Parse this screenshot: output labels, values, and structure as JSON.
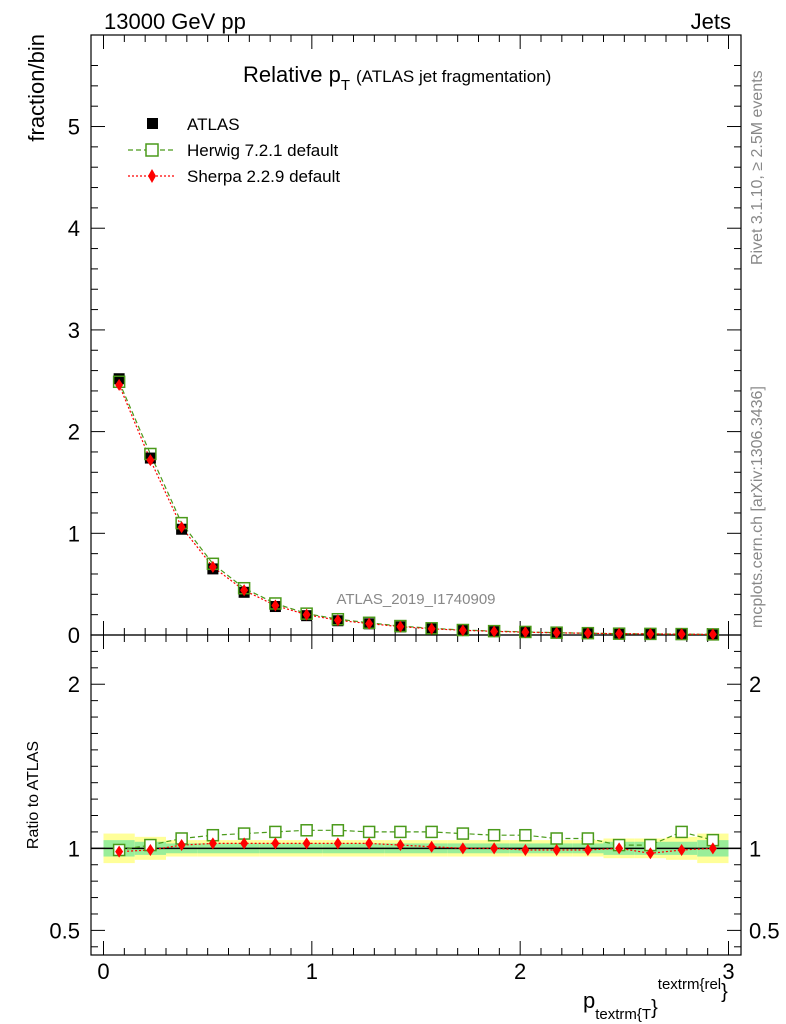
{
  "header": {
    "left": "13000 GeV pp",
    "right": "Jets"
  },
  "side": {
    "top": "Rivet 3.1.10, ≥ 2.5M events",
    "bottom": "mcplots.cern.ch [arXiv:1306.3436]"
  },
  "colors": {
    "herwig": "#4a9a1a",
    "sherpa": "#ff0000",
    "data": "#000000",
    "band_inner": "#99ee99",
    "band_outer": "#ffff99"
  },
  "chart_data": [
    {
      "type": "scatter",
      "title_main": "Relative p",
      "title_sub": "T",
      "title_extra": "(ATLAS jet fragmentation)",
      "ylabel": "fraction/bin",
      "watermark": "ATLAS_2019_I1740909",
      "xlim": [
        -0.06,
        3.06
      ],
      "ylim": [
        0,
        5.9
      ],
      "yticks": [
        0,
        1,
        2,
        3,
        4,
        5
      ],
      "x": [
        0.075,
        0.225,
        0.375,
        0.525,
        0.675,
        0.825,
        0.975,
        1.125,
        1.275,
        1.425,
        1.575,
        1.725,
        1.875,
        2.025,
        2.175,
        2.325,
        2.475,
        2.625,
        2.775,
        2.925
      ],
      "legend": [
        "ATLAS",
        "Herwig 7.2.1 default",
        "Sherpa 2.2.9 default"
      ],
      "series": [
        {
          "name": "ATLAS",
          "values": [
            2.52,
            1.74,
            1.04,
            0.65,
            0.42,
            0.28,
            0.19,
            0.14,
            0.11,
            0.08,
            0.06,
            0.045,
            0.035,
            0.028,
            0.022,
            0.017,
            0.013,
            0.011,
            0.008,
            0.006
          ]
        },
        {
          "name": "Herwig 7.2.1 default",
          "values": [
            2.49,
            1.78,
            1.1,
            0.7,
            0.46,
            0.31,
            0.21,
            0.155,
            0.12,
            0.088,
            0.066,
            0.049,
            0.038,
            0.03,
            0.023,
            0.018,
            0.013,
            0.011,
            0.009,
            0.006
          ]
        },
        {
          "name": "Sherpa 2.2.9 default",
          "values": [
            2.46,
            1.72,
            1.06,
            0.67,
            0.44,
            0.29,
            0.2,
            0.145,
            0.112,
            0.082,
            0.061,
            0.046,
            0.035,
            0.028,
            0.022,
            0.017,
            0.013,
            0.011,
            0.008,
            0.006
          ]
        }
      ]
    },
    {
      "type": "scatter",
      "ylabel": "Ratio to ATLAS",
      "xlabel_main": "p",
      "xlabel_sub": "textrm{T",
      "xlabel_close": "}",
      "xlabel_sup": "textrm{rel",
      "xlabel_sup_close": "}",
      "xlim": [
        -0.06,
        3.06
      ],
      "ylim": [
        0.35,
        2.3
      ],
      "yticks": [
        0.5,
        1,
        2
      ],
      "yticklabels": [
        "0.5",
        "1",
        "2"
      ],
      "xticks": [
        0,
        1,
        2,
        3
      ],
      "xticklabels": [
        "0",
        "1",
        "2",
        "3"
      ],
      "x": [
        0.075,
        0.225,
        0.375,
        0.525,
        0.675,
        0.825,
        0.975,
        1.125,
        1.275,
        1.425,
        1.575,
        1.725,
        1.875,
        2.025,
        2.175,
        2.325,
        2.475,
        2.625,
        2.775,
        2.925
      ],
      "band_inner": [
        0.05,
        0.04,
        0.03,
        0.03,
        0.03,
        0.03,
        0.03,
        0.03,
        0.03,
        0.03,
        0.03,
        0.03,
        0.03,
        0.03,
        0.03,
        0.03,
        0.04,
        0.04,
        0.04,
        0.05
      ],
      "band_outer": [
        0.09,
        0.07,
        0.05,
        0.05,
        0.05,
        0.05,
        0.05,
        0.05,
        0.05,
        0.05,
        0.05,
        0.05,
        0.05,
        0.05,
        0.05,
        0.05,
        0.06,
        0.06,
        0.07,
        0.09
      ],
      "series": [
        {
          "name": "Herwig 7.2.1 default",
          "values": [
            0.99,
            1.02,
            1.06,
            1.08,
            1.09,
            1.1,
            1.11,
            1.11,
            1.1,
            1.1,
            1.1,
            1.09,
            1.08,
            1.08,
            1.06,
            1.06,
            1.02,
            1.02,
            1.1,
            1.05
          ]
        },
        {
          "name": "Sherpa 2.2.9 default",
          "values": [
            0.98,
            0.99,
            1.02,
            1.03,
            1.03,
            1.03,
            1.03,
            1.03,
            1.03,
            1.02,
            1.01,
            1.0,
            1.0,
            0.99,
            0.99,
            0.99,
            1.0,
            0.97,
            0.99,
            1.0
          ]
        }
      ]
    }
  ]
}
